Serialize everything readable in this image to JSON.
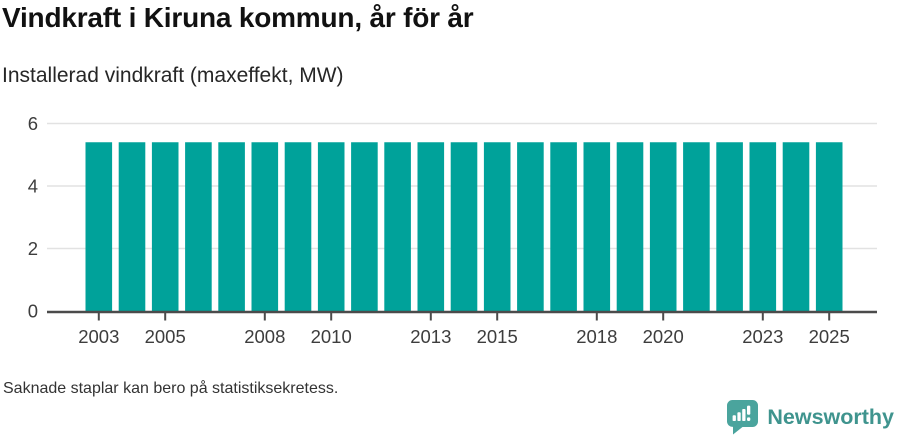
{
  "header": {
    "title": "Vindkraft i Kiruna kommun, år för år",
    "subtitle": "Installerad vindkraft (maxeffekt, MW)"
  },
  "chart_data": {
    "type": "bar",
    "title": "Vindkraft i Kiruna kommun, år för år",
    "subtitle": "Installerad vindkraft (maxeffekt, MW)",
    "xlabel": "",
    "ylabel": "Installerad vindkraft (maxeffekt, MW)",
    "categories": [
      2003,
      2004,
      2005,
      2006,
      2007,
      2008,
      2009,
      2010,
      2011,
      2012,
      2013,
      2014,
      2015,
      2016,
      2017,
      2018,
      2019,
      2020,
      2021,
      2022,
      2023,
      2024,
      2025
    ],
    "values": [
      5.4,
      5.4,
      5.4,
      5.4,
      5.4,
      5.4,
      5.4,
      5.4,
      5.4,
      5.4,
      5.4,
      5.4,
      5.4,
      5.4,
      5.4,
      5.4,
      5.4,
      5.4,
      5.4,
      5.4,
      5.4,
      5.4,
      5.4
    ],
    "ylim": [
      0,
      6
    ],
    "yticks": [
      0,
      2,
      4,
      6
    ],
    "xticks": [
      2003,
      2005,
      2008,
      2010,
      2013,
      2015,
      2018,
      2020,
      2023,
      2025
    ],
    "grid": true,
    "legend": false,
    "bar_color": "#00a29a",
    "gridline_color": "#e2e2e2",
    "axis_color": "#4b4b4b",
    "tick_label_color": "#3d3d3d"
  },
  "footer": {
    "note": "Saknade staplar kan bero på statistiksekretess.",
    "brand_name": "Newsworthy",
    "brand_text_color": "#3f948e",
    "brand_icon_color": "#4aa49d"
  }
}
